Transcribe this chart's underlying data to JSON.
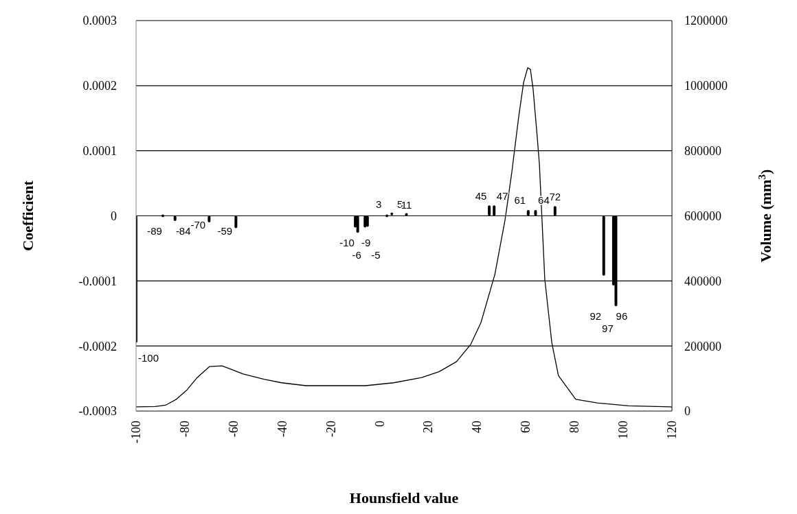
{
  "chart_data": {
    "type": "bar",
    "xlabel": "Hounsfield value",
    "ylabel": "Coefficient",
    "y2label": "Volume (mm$^{3}$)",
    "xlim": [
      -100,
      120
    ],
    "xticks": [
      -100,
      -80,
      -60,
      -40,
      -20,
      0,
      20,
      40,
      60,
      80,
      100,
      120
    ],
    "ylim": [
      -0.0003,
      0.0003
    ],
    "yticks": [
      -0.0003,
      -0.0002,
      -0.0001,
      0,
      0.0001,
      0.0002,
      0.0003
    ],
    "y2lim": [
      0,
      1200000
    ],
    "y2ticks": [
      0,
      200000,
      400000,
      600000,
      800000,
      1000000,
      1200000
    ],
    "grid": "y",
    "series": [
      {
        "color": "#000000",
        "x": [
          -100,
          -89,
          -84,
          -70,
          -59,
          -10,
          -9,
          -6,
          -5,
          3,
          5,
          11,
          45,
          47,
          61,
          64,
          72,
          92,
          96,
          97
        ],
        "values": [
          -0.000195,
          -2e-06,
          -8e-06,
          -1e-05,
          -1.9e-05,
          -1.8e-05,
          -2.6e-05,
          -1.8e-05,
          -1.7e-05,
          -3e-06,
          3e-06,
          2e-06,
          1.6e-05,
          1.6e-05,
          9e-06,
          9e-06,
          1.5e-05,
          -9.2e-05,
          -0.000107,
          -0.000139
        ]
      },
      {
        "type": "line",
        "axis": "y2",
        "color": "#000000",
        "marker": "none",
        "x": [
          -100,
          -92.1,
          -87.9,
          -83.5,
          -79.1,
          -74.9,
          -69.8,
          -64.7,
          -61.9,
          -56.1,
          -47.5,
          -40.3,
          -30.3,
          -5.8,
          5.8,
          17.3,
          24.4,
          31.6,
          37.4,
          41.6,
          47.3,
          51.5,
          54.3,
          57.1,
          59.1,
          60.8,
          61.9,
          63,
          64.7,
          65.6,
          67.8,
          70.7,
          73.4,
          80.5,
          89.3,
          102.2,
          119.5,
          120
        ],
        "values": [
          13000,
          14000,
          18000,
          36000,
          65000,
          103000,
          137000,
          139000,
          131000,
          114000,
          98000,
          87000,
          78000,
          78000,
          87000,
          103000,
          121000,
          152000,
          205000,
          272000,
          420000,
          588000,
          736000,
          905000,
          1010000,
          1055000,
          1050000,
          990000,
          842000,
          757000,
          405000,
          209000,
          109000,
          36000,
          25000,
          16000,
          13000,
          12000
        ]
      }
    ],
    "annotations": [
      "-100",
      "-89",
      "-84",
      "-70",
      "-59",
      "-10",
      "-9",
      "-6",
      "-5",
      "3",
      "5",
      "11",
      "45",
      "47",
      "61",
      "64",
      "72",
      "92",
      "96",
      "97"
    ]
  }
}
